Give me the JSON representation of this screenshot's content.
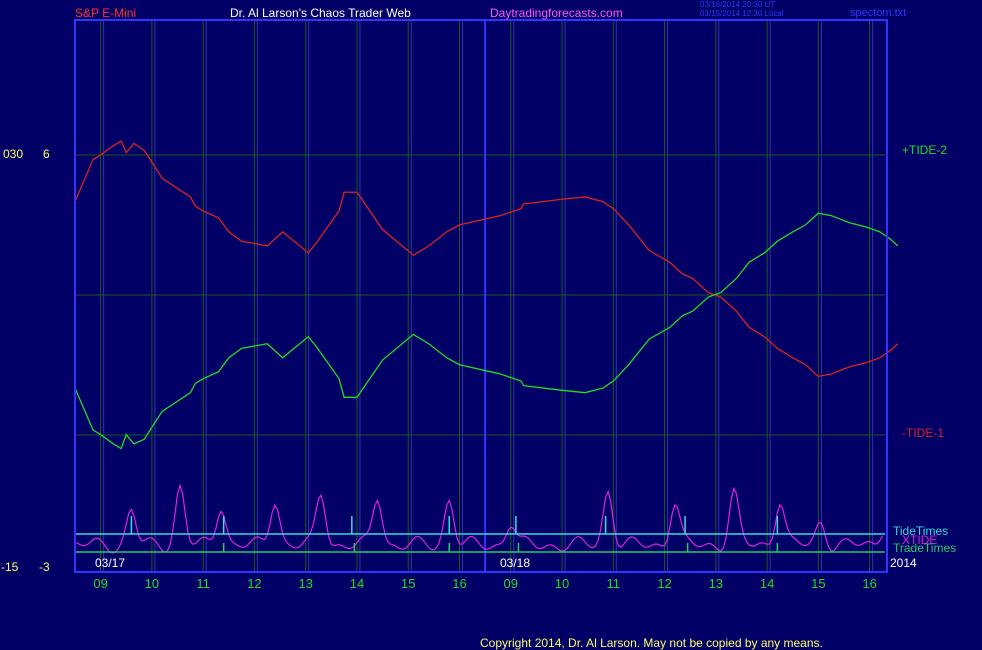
{
  "header": {
    "instrument": "S&P E-Mini",
    "site": "Dr. Al Larson's Chaos Trader Web",
    "domain": "Daytradingforecasts.com",
    "stamp_line1": "03/16/2014 20:30 UT",
    "stamp_line2": "03/15/2014 12:30 Local",
    "file": "spectom.txt"
  },
  "footer": {
    "copyright": "Copyright 2014, Dr. Al Larson. May not be copied by any means."
  },
  "colors": {
    "background": "#000066",
    "grid": "#1a5c1a",
    "tide1": "#e02020",
    "tide2": "#22dd22",
    "xtide": "#e020e0",
    "tidetimes": "#33dddd",
    "tradetimes": "#22cc66",
    "frame": "#3333ff"
  },
  "chart_data": {
    "type": "line",
    "title": "",
    "xlabel": "",
    "ylabel": "",
    "left_axis_labels": {
      "top_a": "030",
      "top_b": "6",
      "bottom_a": "-15",
      "bottom_b": "-3"
    },
    "x_ticks": [
      "09",
      "10",
      "11",
      "12",
      "13",
      "14",
      "15",
      "16",
      "09",
      "10",
      "11",
      "12",
      "13",
      "14",
      "15",
      "16"
    ],
    "date_labels": [
      "03/17",
      "03/18",
      "2014"
    ],
    "x": [
      8.5,
      8.85,
      9.0,
      9.25,
      9.4,
      9.5,
      9.65,
      9.85,
      10.2,
      10.75,
      10.85,
      11.0,
      11.3,
      11.5,
      11.75,
      12.25,
      12.55,
      13.05,
      13.2,
      13.65,
      13.75,
      14.0,
      14.5,
      15.1,
      15.4,
      15.75,
      16.0,
      8.6,
      8.8,
      9.2,
      9.25,
      10.0,
      10.45,
      10.8,
      11.0,
      11.3,
      11.7,
      12.1,
      12.35,
      12.55,
      12.85,
      13.1,
      13.4,
      13.65,
      13.95,
      14.2,
      14.5,
      14.75,
      14.9,
      15.0,
      15.25,
      15.6,
      15.95,
      16.2,
      16.4,
      16.55
    ],
    "series": [
      {
        "name": "-TIDE-1",
        "values": [
          5.0,
          5.9,
          6.0,
          6.2,
          6.3,
          6.05,
          6.25,
          6.1,
          5.5,
          5.1,
          4.9,
          4.8,
          4.65,
          4.35,
          4.15,
          4.05,
          4.35,
          3.9,
          4.1,
          4.8,
          5.2,
          5.2,
          4.4,
          3.85,
          4.05,
          4.35,
          4.5,
          4.65,
          4.7,
          4.85,
          4.95,
          5.05,
          5.1,
          5.0,
          4.85,
          4.5,
          3.95,
          3.7,
          3.45,
          3.35,
          3.05,
          2.95,
          2.65,
          2.3,
          2.1,
          1.85,
          1.65,
          1.5,
          1.35,
          1.25,
          1.3,
          1.45,
          1.55,
          1.65,
          1.8,
          1.95
        ]
      },
      {
        "name": "+TIDE-2",
        "values": [
          1.0,
          0.1,
          0.0,
          -0.2,
          -0.3,
          0.0,
          -0.2,
          -0.1,
          0.5,
          0.9,
          1.1,
          1.2,
          1.35,
          1.65,
          1.85,
          1.95,
          1.65,
          2.1,
          1.9,
          1.2,
          0.8,
          0.8,
          1.6,
          2.15,
          1.95,
          1.65,
          1.5,
          1.35,
          1.3,
          1.15,
          1.05,
          0.95,
          0.9,
          1.0,
          1.15,
          1.5,
          2.05,
          2.3,
          2.55,
          2.65,
          2.95,
          3.05,
          3.35,
          3.7,
          3.9,
          4.15,
          4.35,
          4.5,
          4.65,
          4.75,
          4.7,
          4.55,
          4.45,
          4.35,
          4.2,
          4.05
        ]
      }
    ],
    "series_labels": {
      "tide2": "+TIDE-2",
      "tide1": "-TIDE-1",
      "tidetimes": "TideTimes",
      "xtide": "XTIDE",
      "tradetimes": "TradeTimes"
    },
    "xtide_peaks": [
      [
        9.6,
        0.6
      ],
      [
        10.55,
        1.0
      ],
      [
        11.35,
        0.7
      ],
      [
        12.4,
        0.8
      ],
      [
        13.3,
        0.9
      ],
      [
        14.4,
        0.85
      ],
      [
        15.8,
        0.8
      ],
      [
        9.0,
        0.4
      ],
      [
        10.9,
        0.95
      ],
      [
        12.2,
        0.75
      ],
      [
        13.35,
        0.9
      ],
      [
        14.25,
        0.8
      ],
      [
        15.05,
        0.4
      ],
      [
        16.3,
        0.35
      ]
    ],
    "tide_times": [
      9.6,
      11.4,
      13.9,
      15.8,
      9.1,
      10.85,
      12.4,
      14.2
    ],
    "trade_times": [
      11.4,
      13.95,
      15.8,
      9.15,
      12.45,
      14.2
    ],
    "grid": true
  }
}
